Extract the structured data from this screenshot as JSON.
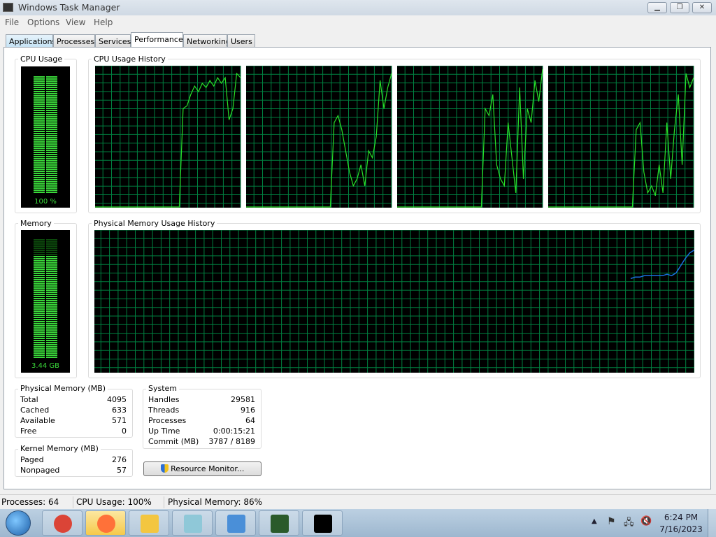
{
  "window": {
    "title": "Windows Task Manager",
    "minimize": "▁",
    "restore": "❐",
    "close": "✕"
  },
  "menu": [
    "File",
    "Options",
    "View",
    "Help"
  ],
  "tabs": [
    {
      "label": "Applications"
    },
    {
      "label": "Processes"
    },
    {
      "label": "Services"
    },
    {
      "label": "Performance",
      "active": true
    },
    {
      "label": "Networking"
    },
    {
      "label": "Users"
    }
  ],
  "cpu": {
    "label": "CPU Usage",
    "value_text": "100 %",
    "percent": 100,
    "history_label": "CPU Usage History",
    "cores": [
      [
        0,
        0,
        0,
        0,
        0,
        0,
        0,
        0,
        0,
        0,
        0,
        0,
        0,
        0,
        0,
        0,
        0,
        0,
        0,
        0,
        0,
        0,
        0,
        70,
        72,
        80,
        86,
        82,
        88,
        85,
        90,
        86,
        92,
        88,
        92,
        62,
        70,
        95,
        92
      ],
      [
        0,
        0,
        0,
        0,
        0,
        0,
        0,
        0,
        0,
        0,
        0,
        0,
        0,
        0,
        0,
        0,
        0,
        0,
        0,
        0,
        0,
        0,
        0,
        60,
        65,
        55,
        40,
        25,
        15,
        20,
        30,
        15,
        40,
        35,
        50,
        90,
        70,
        85,
        95
      ],
      [
        0,
        0,
        0,
        0,
        0,
        0,
        0,
        0,
        0,
        0,
        0,
        0,
        0,
        0,
        0,
        0,
        0,
        0,
        0,
        0,
        0,
        0,
        0,
        70,
        65,
        80,
        30,
        20,
        15,
        60,
        35,
        10,
        85,
        20,
        70,
        60,
        90,
        75,
        98
      ],
      [
        0,
        0,
        0,
        0,
        0,
        0,
        0,
        0,
        0,
        0,
        0,
        0,
        0,
        0,
        0,
        0,
        0,
        0,
        0,
        0,
        0,
        0,
        0,
        55,
        60,
        25,
        10,
        15,
        8,
        30,
        10,
        60,
        20,
        55,
        80,
        30,
        95,
        85,
        92
      ]
    ]
  },
  "memory": {
    "label": "Memory",
    "value_text": "3.44 GB",
    "percent": 86,
    "history_label": "Physical Memory Usage History",
    "history": [
      66,
      67,
      67,
      68,
      68,
      68,
      68,
      68,
      69,
      68,
      70,
      75,
      80,
      84,
      86
    ]
  },
  "colors": {
    "cpu_line": "#28e028",
    "mem_line": "#1a6ee0",
    "grid": "#008040",
    "meter": "#3ad83a"
  },
  "physical_memory": {
    "title": "Physical Memory (MB)",
    "rows": [
      {
        "k": "Total",
        "v": "4095"
      },
      {
        "k": "Cached",
        "v": "633"
      },
      {
        "k": "Available",
        "v": "571"
      },
      {
        "k": "Free",
        "v": "0"
      }
    ]
  },
  "kernel_memory": {
    "title": "Kernel Memory (MB)",
    "rows": [
      {
        "k": "Paged",
        "v": "276"
      },
      {
        "k": "Nonpaged",
        "v": "57"
      }
    ]
  },
  "system": {
    "title": "System",
    "rows": [
      {
        "k": "Handles",
        "v": "29581"
      },
      {
        "k": "Threads",
        "v": "916"
      },
      {
        "k": "Processes",
        "v": "64"
      },
      {
        "k": "Up Time",
        "v": "0:00:15:21"
      },
      {
        "k": "Commit (MB)",
        "v": "3787 / 8189"
      }
    ]
  },
  "resource_monitor": "Resource Monitor...",
  "status": {
    "processes": "Processes: 64",
    "cpu": "CPU Usage: 100%",
    "memory": "Physical Memory: 86%"
  },
  "taskbar": {
    "apps": [
      "chrome-icon",
      "firefox-icon",
      "explorer-icon",
      "notepad-icon",
      "mail-icon",
      "task-manager-icon",
      "cmd-icon"
    ],
    "time": "6:24 PM",
    "date": "7/16/2023"
  }
}
